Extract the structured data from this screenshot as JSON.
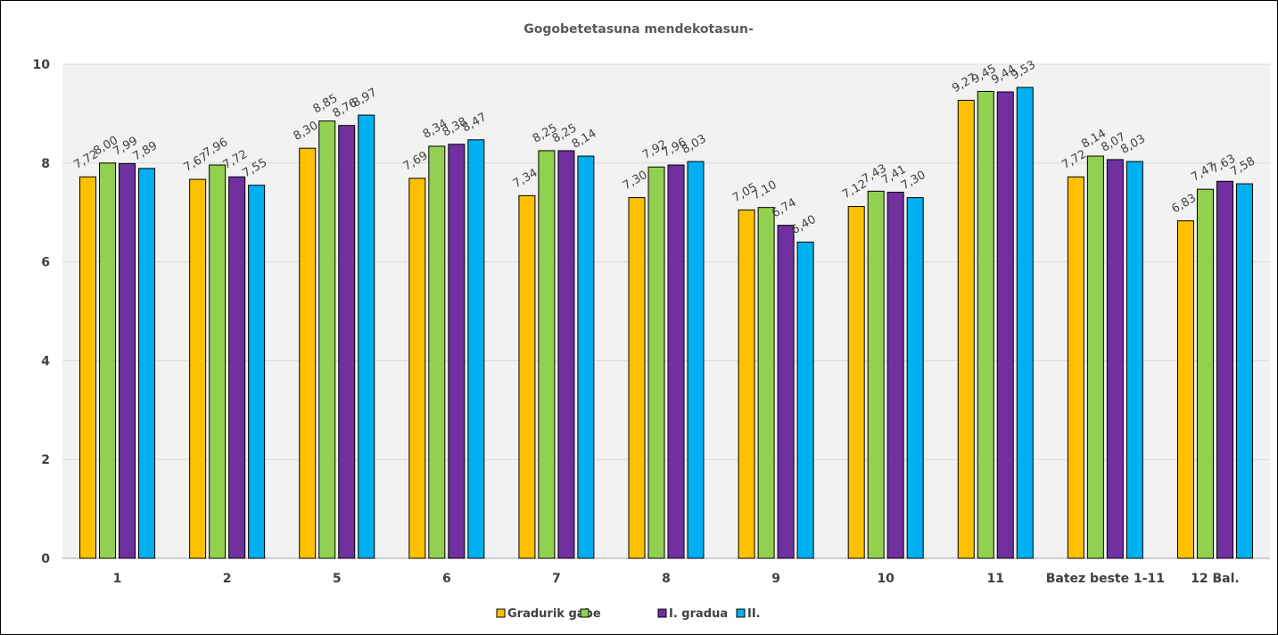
{
  "chart_data": {
    "type": "bar",
    "title": "Gogobetetasuna mendekotasun-",
    "xlabel": "",
    "ylabel": "",
    "ylim": [
      0,
      10
    ],
    "yticks": [
      0,
      2,
      4,
      6,
      8,
      10
    ],
    "grid": true,
    "legend_position": "bottom",
    "categories": [
      "1",
      "2",
      "5",
      "6",
      "7",
      "8",
      "9",
      "10",
      "11",
      "Batez beste 1-11",
      "12 Bal."
    ],
    "series": [
      {
        "name": "Gradurik gabe",
        "color": "#FFC000",
        "values": [
          7.72,
          7.67,
          8.3,
          7.69,
          7.34,
          7.3,
          7.05,
          7.12,
          9.27,
          7.72,
          6.83
        ],
        "labels": [
          "7,72",
          "7,67",
          "8,30",
          "7,69",
          "7,34",
          "7,30",
          "7,05",
          "7,12",
          "9,27",
          "7,72",
          "6,83"
        ]
      },
      {
        "name": "I. gradua",
        "color": "#92D050",
        "values": [
          8.0,
          7.96,
          8.85,
          8.34,
          8.25,
          7.92,
          7.1,
          7.43,
          9.45,
          8.14,
          7.47
        ],
        "labels": [
          "8,00",
          "7,96",
          "8,85",
          "8,34",
          "8,25",
          "7,92",
          "7,10",
          "7,43",
          "9,45",
          "8,14",
          "7,47"
        ]
      },
      {
        "name": "",
        "color": "#7030A0",
        "values": [
          7.99,
          7.72,
          8.76,
          8.38,
          8.25,
          7.96,
          6.74,
          7.41,
          9.44,
          8.07,
          7.63
        ],
        "labels": [
          "7,99",
          "7,72",
          "8,76",
          "8,38",
          "8,25",
          "7,96",
          "6,74",
          "7,41",
          "9,44",
          "8,07",
          "7,63"
        ]
      },
      {
        "name": "II.",
        "color": "#00B0F0",
        "values": [
          7.89,
          7.55,
          8.97,
          8.47,
          8.14,
          8.03,
          6.4,
          7.3,
          9.53,
          8.03,
          7.58
        ],
        "labels": [
          "7,89",
          "7,55",
          "8,97",
          "8,47",
          "8,14",
          "8,03",
          "6,40",
          "7,30",
          "9,53",
          "8,03",
          "7,58"
        ]
      }
    ]
  }
}
